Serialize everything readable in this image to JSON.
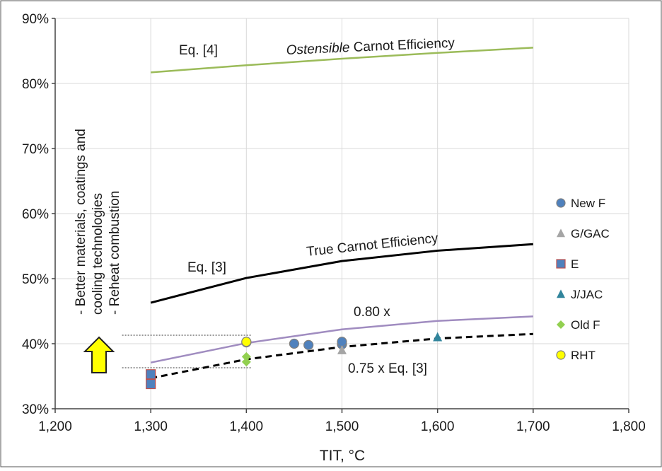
{
  "chart_data": {
    "type": "scatter",
    "xlabel": "TIT, °C",
    "ylabel": "",
    "xlim": [
      1200,
      1800
    ],
    "ylim": [
      30,
      90
    ],
    "x_ticks": [
      "1,200",
      "1,300",
      "1,400",
      "1,500",
      "1,600",
      "1,700",
      "1,800"
    ],
    "x_tick_values": [
      1200,
      1300,
      1400,
      1500,
      1600,
      1700,
      1800
    ],
    "y_ticks": [
      "30%",
      "40%",
      "50%",
      "60%",
      "70%",
      "80%",
      "90%"
    ],
    "y_tick_values": [
      30,
      40,
      50,
      60,
      70,
      80,
      90
    ],
    "grid": true,
    "legend_position": "right",
    "lines": [
      {
        "name": "Ostensible Carnot Efficiency",
        "color": "#9bbb59",
        "dash": false,
        "x": [
          1300,
          1400,
          1500,
          1600,
          1700
        ],
        "y": [
          81.7,
          82.8,
          83.8,
          84.7,
          85.5
        ]
      },
      {
        "name": "True Carnot Efficiency",
        "color": "#000000",
        "dash": false,
        "x": [
          1300,
          1400,
          1500,
          1600,
          1700
        ],
        "y": [
          46.3,
          50.1,
          52.7,
          54.3,
          55.3
        ]
      },
      {
        "name": "0.80 x",
        "color": "#a08cc0",
        "dash": false,
        "x": [
          1300,
          1400,
          1500,
          1600,
          1700
        ],
        "y": [
          37.1,
          40.1,
          42.2,
          43.5,
          44.2
        ]
      },
      {
        "name": "0.75 x Eq. [3]",
        "color": "#000000",
        "dash": true,
        "x": [
          1300,
          1400,
          1500,
          1600,
          1700
        ],
        "y": [
          34.7,
          37.6,
          39.5,
          40.8,
          41.5
        ]
      }
    ],
    "series": [
      {
        "name": "New F",
        "marker": "circle",
        "color": "#4f81bd",
        "x": [
          1400,
          1450,
          1465,
          1500,
          1500
        ],
        "y": [
          40.2,
          40.0,
          39.8,
          39.9,
          40.3
        ]
      },
      {
        "name": "G/GAC",
        "marker": "triangle",
        "color": "#a5a5a5",
        "x": [
          1500
        ],
        "y": [
          39.0
        ]
      },
      {
        "name": "E",
        "marker": "square",
        "color": "#4f81bd",
        "x": [
          1300,
          1300
        ],
        "y": [
          33.8,
          35.3
        ]
      },
      {
        "name": "J/JAC",
        "marker": "triangle",
        "color": "#31859c",
        "x": [
          1600
        ],
        "y": [
          41.0
        ]
      },
      {
        "name": "Old F",
        "marker": "diamond",
        "color": "#92d050",
        "x": [
          1400,
          1400
        ],
        "y": [
          37.2,
          38.0
        ]
      },
      {
        "name": "RHT",
        "marker": "circle",
        "color": "#ffff00",
        "x": [
          1400
        ],
        "y": [
          40.3
        ]
      }
    ],
    "annotations": {
      "eq4": "Eq. [4]",
      "ostensible_italic": "Ostensible",
      "ostensible_rest": " Carnot Efficiency",
      "true_carnot": "True Carnot Efficiency",
      "eq3": "Eq. [3]",
      "factor_080": "0.80 x",
      "factor_075": "0.75 x Eq. [3]",
      "side_line1": "- Better materials, coatings and",
      "side_line2": "cooling technologies",
      "side_line3": "- Reheat combustion"
    },
    "reference_lines": [
      {
        "x_from": 1270,
        "x_to": 1405,
        "y": 41.3
      },
      {
        "x_from": 1270,
        "x_to": 1405,
        "y": 36.3
      }
    ],
    "arrow": {
      "color": "#ffff00",
      "direction": "up"
    }
  }
}
